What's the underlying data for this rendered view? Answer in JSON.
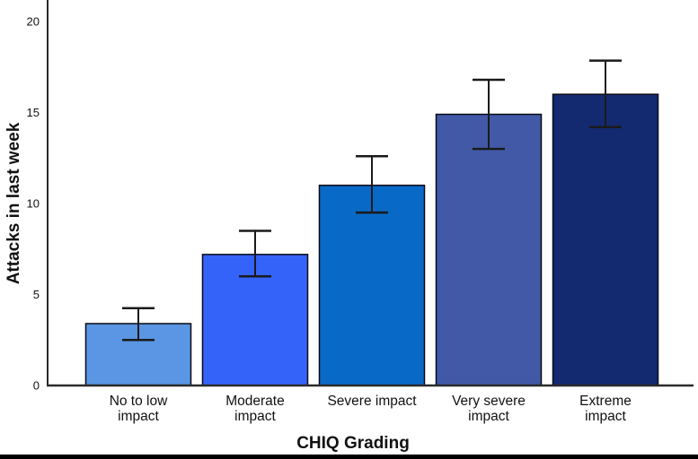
{
  "figure": {
    "background": "#ffffff",
    "bottom_rule_color": "#000000"
  },
  "chart_data": {
    "type": "bar",
    "title": "",
    "xlabel": "CHIQ Grading",
    "ylabel": "Attacks in last week",
    "categories": [
      "No to low\nimpact",
      "Moderate\nimpact",
      "Severe impact",
      "Very severe\nimpact",
      "Extreme\nimpact"
    ],
    "values": [
      3.4,
      7.2,
      11.0,
      14.9,
      16.0
    ],
    "error_low": [
      2.5,
      6.0,
      9.5,
      13.0,
      14.2
    ],
    "error_high": [
      4.25,
      8.5,
      12.6,
      16.8,
      17.85
    ],
    "bar_colors": [
      "#5A96E3",
      "#3463FA",
      "#0969C6",
      "#4159A7",
      "#132A70"
    ],
    "bar_outline": "#0b0b14",
    "error_color": "#1a1a1a",
    "axis_color": "#2b2b2b",
    "ylim": [
      0,
      20
    ],
    "yticks": [
      0,
      5,
      10,
      15,
      20
    ],
    "grid": false,
    "legend": "none"
  }
}
